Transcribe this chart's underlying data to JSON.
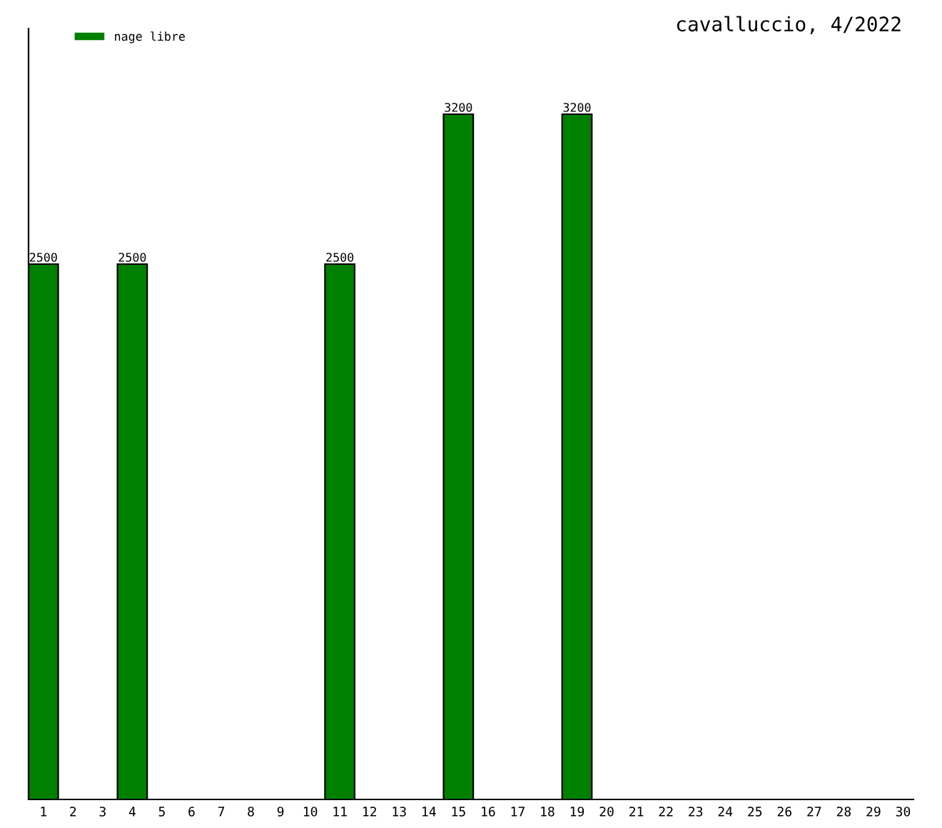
{
  "chart_data": {
    "type": "bar",
    "title": "cavalluccio, 4/2022",
    "categories": [
      "1",
      "2",
      "3",
      "4",
      "5",
      "6",
      "7",
      "8",
      "9",
      "10",
      "11",
      "12",
      "13",
      "14",
      "15",
      "16",
      "17",
      "18",
      "19",
      "20",
      "21",
      "22",
      "23",
      "24",
      "25",
      "26",
      "27",
      "28",
      "29",
      "30"
    ],
    "series": [
      {
        "name": "nage libre",
        "color": "#008000",
        "values": [
          2500,
          null,
          null,
          2500,
          null,
          null,
          null,
          null,
          null,
          null,
          2500,
          null,
          null,
          null,
          3200,
          null,
          null,
          null,
          3200,
          null,
          null,
          null,
          null,
          null,
          null,
          null,
          null,
          null,
          null,
          null
        ]
      }
    ],
    "ylim": [
      0,
      3600
    ],
    "tick_labels": "x",
    "data_labels": true,
    "legend": "top left",
    "grid": false
  }
}
